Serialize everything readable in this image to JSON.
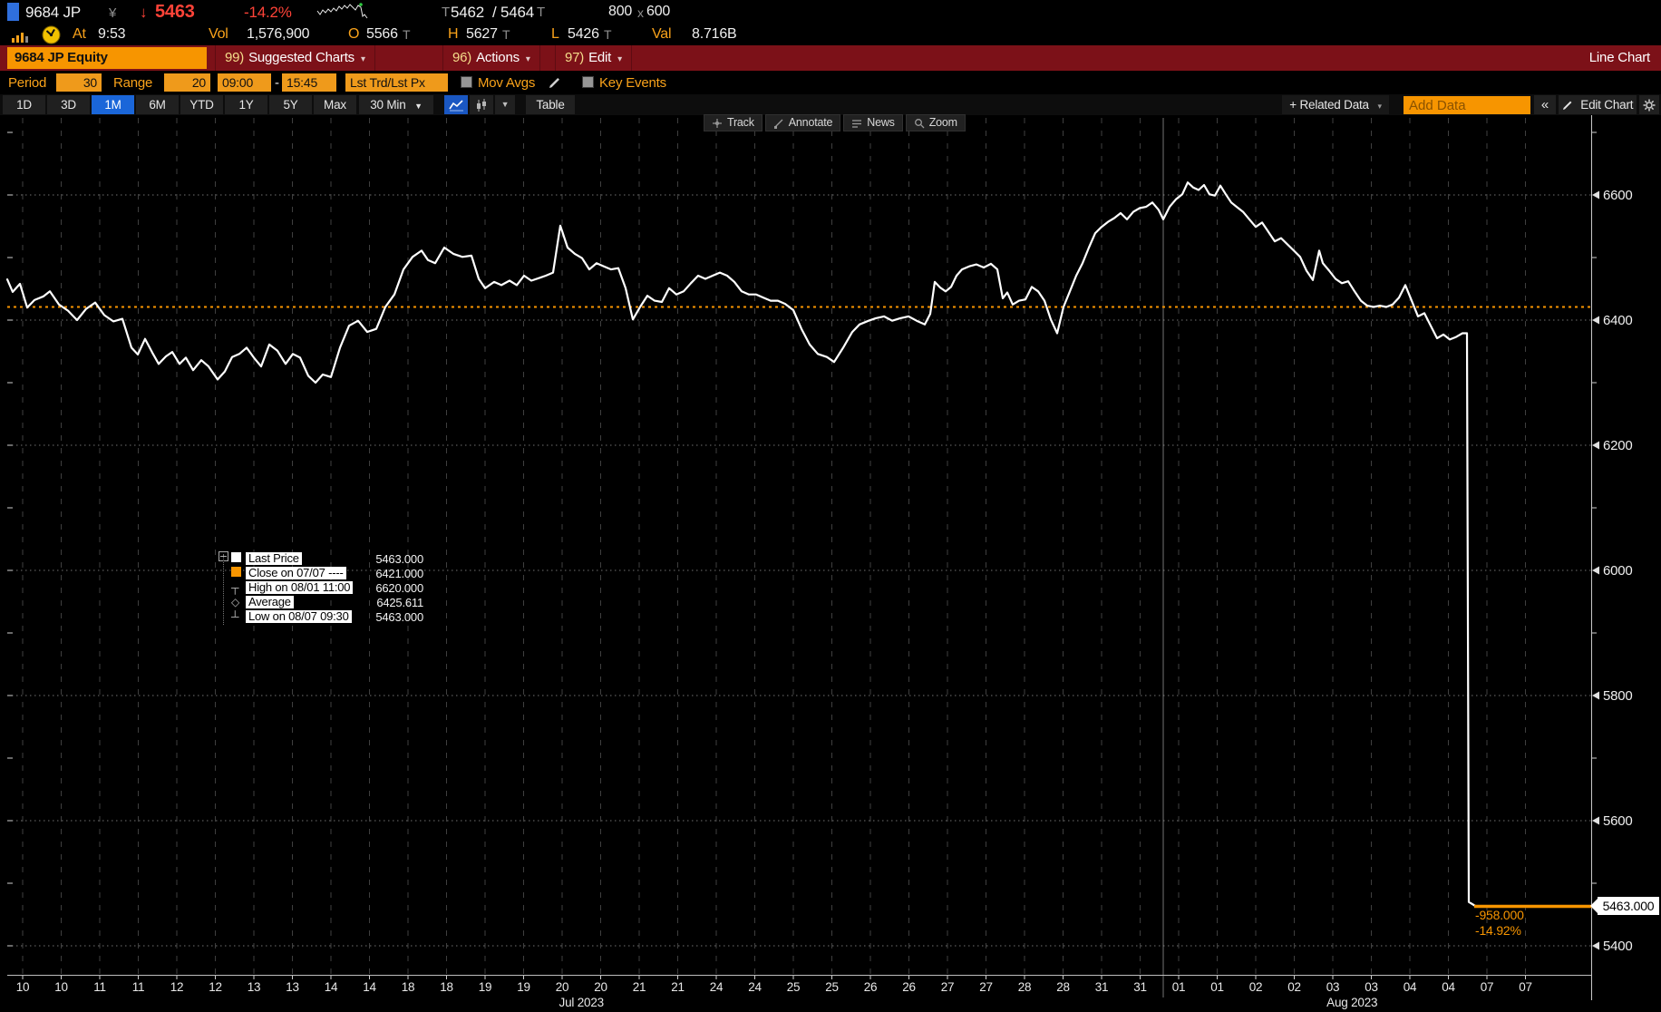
{
  "header": {
    "ticker": "9684 JP",
    "currency": "¥",
    "direction_arrow": "↓",
    "last_price": "5463",
    "change_pct": "-14.2%",
    "quote": {
      "pre": "T",
      "bid": "5462",
      "slash": "/",
      "ask": "5464",
      "post": "T"
    },
    "lot": {
      "bid_size": "800",
      "x": "x",
      "ask_size": "600"
    },
    "at_label": "At",
    "at_time": "9:53",
    "vol_label": "Vol",
    "volume": "1,576,900",
    "open_label": "O",
    "open": "5566",
    "open_sfx": "T",
    "high_label": "H",
    "high": "5627",
    "high_sfx": "T",
    "low_label": "L",
    "low": "5426",
    "low_sfx": "T",
    "val_label": "Val",
    "value_traded": "8.716B"
  },
  "titlebar": {
    "security": "9684 JP Equity",
    "menu_suggested_num": "99)",
    "menu_suggested": "Suggested Charts",
    "menu_actions_num": "96)",
    "menu_actions": "Actions",
    "menu_edit_num": "97)",
    "menu_edit": "Edit",
    "view_label": "Line Chart"
  },
  "settings": {
    "period_label": "Period",
    "period": "30",
    "range_label": "Range",
    "range": "20",
    "time_start": "09:00",
    "dash": "-",
    "time_end": "15:45",
    "price_field": "Lst Trd/Lst Px",
    "mov_avgs_label": "Mov Avgs",
    "key_events_label": "Key Events"
  },
  "toolbar": {
    "tabs": [
      "1D",
      "3D",
      "1M",
      "6M",
      "YTD",
      "1Y",
      "5Y",
      "Max"
    ],
    "selected_tab": "1M",
    "interval": "30 Min",
    "interval_caret": "▼",
    "chart_style_caret": "▼",
    "table_label": "Table",
    "related_data_label": "+ Related Data",
    "related_caret": "▾",
    "add_data_placeholder": "Add Data",
    "collapse_label": "«",
    "edit_chart_label": "Edit Chart"
  },
  "chart_toolbar": {
    "track": "Track",
    "annotate": "Annotate",
    "news": "News",
    "zoom": "Zoom"
  },
  "legend": {
    "rows": [
      {
        "label": "Last Price",
        "value": "5463.000"
      },
      {
        "label": "Close on 07/07 ----",
        "value": "6421.000"
      },
      {
        "label": "High on 08/01 11:00",
        "value": "6620.000"
      },
      {
        "label": "Average",
        "value": "6425.611"
      },
      {
        "label": "Low on 08/07 09:30",
        "value": "5463.000"
      }
    ]
  },
  "annotation": {
    "change": "-958.000",
    "pct": "-14.92%"
  },
  "axis": {
    "last_price_label": "5463.000"
  },
  "colors": {
    "amber": "#f79500",
    "red": "#ff4338",
    "selected_blue": "#1a66d9",
    "line": "#ffffff",
    "titlebar_red": "#7c1118",
    "green_dot": "#2ecc40"
  },
  "chart_data": {
    "type": "line",
    "security": "9684 JP Equity",
    "series_name": "Last Price",
    "interval": "30 Min",
    "y_ticks": [
      6600,
      6400,
      6200,
      6000,
      5800,
      5600,
      5400
    ],
    "y_minor_ticks": [
      6700,
      6500,
      6300,
      6100,
      5900,
      5700,
      5500
    ],
    "x_labels": [
      "10",
      "10",
      "11",
      "11",
      "12",
      "12",
      "13",
      "13",
      "14",
      "14",
      "18",
      "18",
      "19",
      "19",
      "20",
      "20",
      "21",
      "21",
      "24",
      "24",
      "25",
      "25",
      "26",
      "26",
      "27",
      "27",
      "28",
      "28",
      "31",
      "31",
      "01",
      "01",
      "02",
      "02",
      "03",
      "03",
      "04",
      "04",
      "07",
      "07"
    ],
    "month_labels": [
      {
        "text": "Jul 2023",
        "tick_index": 14.5
      },
      {
        "text": "Aug 2023",
        "tick_index": 34.5
      }
    ],
    "month_separator_tick": 29.6,
    "close_line_value": 6421,
    "last_price": 5463,
    "high": 6620,
    "low": 5463,
    "average": 6425.611,
    "points": [
      [
        8,
        6465
      ],
      [
        14,
        6445
      ],
      [
        22,
        6458
      ],
      [
        30,
        6420
      ],
      [
        38,
        6432
      ],
      [
        48,
        6438
      ],
      [
        55,
        6446
      ],
      [
        65,
        6425
      ],
      [
        75,
        6415
      ],
      [
        85,
        6400
      ],
      [
        95,
        6418
      ],
      [
        105,
        6428
      ],
      [
        115,
        6408
      ],
      [
        125,
        6398
      ],
      [
        135,
        6402
      ],
      [
        145,
        6356
      ],
      [
        152,
        6345
      ],
      [
        160,
        6370
      ],
      [
        168,
        6348
      ],
      [
        175,
        6330
      ],
      [
        183,
        6342
      ],
      [
        190,
        6349
      ],
      [
        198,
        6330
      ],
      [
        205,
        6340
      ],
      [
        213,
        6320
      ],
      [
        222,
        6336
      ],
      [
        230,
        6326
      ],
      [
        240,
        6305
      ],
      [
        248,
        6318
      ],
      [
        256,
        6341
      ],
      [
        264,
        6346
      ],
      [
        272,
        6356
      ],
      [
        280,
        6340
      ],
      [
        288,
        6326
      ],
      [
        297,
        6361
      ],
      [
        306,
        6351
      ],
      [
        315,
        6330
      ],
      [
        323,
        6346
      ],
      [
        331,
        6340
      ],
      [
        340,
        6311
      ],
      [
        348,
        6300
      ],
      [
        356,
        6313
      ],
      [
        365,
        6309
      ],
      [
        375,
        6356
      ],
      [
        385,
        6391
      ],
      [
        395,
        6399
      ],
      [
        405,
        6381
      ],
      [
        415,
        6386
      ],
      [
        425,
        6421
      ],
      [
        435,
        6441
      ],
      [
        445,
        6481
      ],
      [
        455,
        6501
      ],
      [
        465,
        6511
      ],
      [
        472,
        6496
      ],
      [
        480,
        6491
      ],
      [
        490,
        6516
      ],
      [
        500,
        6506
      ],
      [
        510,
        6501
      ],
      [
        520,
        6503
      ],
      [
        528,
        6466
      ],
      [
        535,
        6451
      ],
      [
        545,
        6461
      ],
      [
        553,
        6456
      ],
      [
        562,
        6463
      ],
      [
        570,
        6456
      ],
      [
        578,
        6471
      ],
      [
        586,
        6463
      ],
      [
        594,
        6467
      ],
      [
        602,
        6471
      ],
      [
        610,
        6476
      ],
      [
        618,
        6551
      ],
      [
        626,
        6516
      ],
      [
        634,
        6506
      ],
      [
        642,
        6499
      ],
      [
        650,
        6481
      ],
      [
        658,
        6491
      ],
      [
        666,
        6486
      ],
      [
        674,
        6481
      ],
      [
        682,
        6483
      ],
      [
        690,
        6451
      ],
      [
        698,
        6401
      ],
      [
        706,
        6421
      ],
      [
        714,
        6439
      ],
      [
        722,
        6431
      ],
      [
        730,
        6429
      ],
      [
        738,
        6451
      ],
      [
        746,
        6441
      ],
      [
        754,
        6446
      ],
      [
        762,
        6459
      ],
      [
        770,
        6471
      ],
      [
        778,
        6466
      ],
      [
        786,
        6471
      ],
      [
        794,
        6476
      ],
      [
        802,
        6471
      ],
      [
        810,
        6461
      ],
      [
        818,
        6446
      ],
      [
        826,
        6441
      ],
      [
        834,
        6441
      ],
      [
        842,
        6436
      ],
      [
        850,
        6431
      ],
      [
        858,
        6431
      ],
      [
        866,
        6426
      ],
      [
        875,
        6416
      ],
      [
        884,
        6386
      ],
      [
        893,
        6361
      ],
      [
        902,
        6346
      ],
      [
        912,
        6341
      ],
      [
        920,
        6333
      ],
      [
        930,
        6356
      ],
      [
        940,
        6381
      ],
      [
        948,
        6393
      ],
      [
        958,
        6399
      ],
      [
        966,
        6403
      ],
      [
        975,
        6406
      ],
      [
        984,
        6399
      ],
      [
        993,
        6403
      ],
      [
        1002,
        6406
      ],
      [
        1011,
        6399
      ],
      [
        1020,
        6393
      ],
      [
        1026,
        6410
      ],
      [
        1031,
        6461
      ],
      [
        1037,
        6452
      ],
      [
        1043,
        6446
      ],
      [
        1049,
        6453
      ],
      [
        1055,
        6471
      ],
      [
        1061,
        6481
      ],
      [
        1069,
        6486
      ],
      [
        1077,
        6489
      ],
      [
        1085,
        6484
      ],
      [
        1093,
        6490
      ],
      [
        1100,
        6481
      ],
      [
        1106,
        6435
      ],
      [
        1111,
        6444
      ],
      [
        1117,
        6425
      ],
      [
        1124,
        6431
      ],
      [
        1131,
        6433
      ],
      [
        1138,
        6453
      ],
      [
        1145,
        6446
      ],
      [
        1152,
        6431
      ],
      [
        1159,
        6401
      ],
      [
        1166,
        6379
      ],
      [
        1173,
        6421
      ],
      [
        1180,
        6446
      ],
      [
        1187,
        6471
      ],
      [
        1194,
        6491
      ],
      [
        1201,
        6516
      ],
      [
        1208,
        6539
      ],
      [
        1215,
        6549
      ],
      [
        1222,
        6557
      ],
      [
        1229,
        6563
      ],
      [
        1236,
        6571
      ],
      [
        1243,
        6561
      ],
      [
        1250,
        6573
      ],
      [
        1257,
        6579
      ],
      [
        1264,
        6581
      ],
      [
        1271,
        6588
      ],
      [
        1278,
        6576
      ],
      [
        1283,
        6561
      ],
      [
        1290,
        6581
      ],
      [
        1297,
        6593
      ],
      [
        1304,
        6601
      ],
      [
        1310,
        6620
      ],
      [
        1316,
        6612
      ],
      [
        1322,
        6608
      ],
      [
        1328,
        6616
      ],
      [
        1334,
        6601
      ],
      [
        1340,
        6599
      ],
      [
        1346,
        6615
      ],
      [
        1352,
        6601
      ],
      [
        1358,
        6588
      ],
      [
        1364,
        6581
      ],
      [
        1371,
        6573
      ],
      [
        1378,
        6561
      ],
      [
        1385,
        6549
      ],
      [
        1392,
        6556
      ],
      [
        1399,
        6541
      ],
      [
        1406,
        6526
      ],
      [
        1413,
        6531
      ],
      [
        1420,
        6521
      ],
      [
        1427,
        6511
      ],
      [
        1434,
        6501
      ],
      [
        1441,
        6479
      ],
      [
        1448,
        6464
      ],
      [
        1455,
        6511
      ],
      [
        1459,
        6491
      ],
      [
        1466,
        6479
      ],
      [
        1473,
        6466
      ],
      [
        1480,
        6459
      ],
      [
        1487,
        6462
      ],
      [
        1494,
        6446
      ],
      [
        1501,
        6431
      ],
      [
        1508,
        6423
      ],
      [
        1515,
        6421
      ],
      [
        1522,
        6423
      ],
      [
        1529,
        6421
      ],
      [
        1536,
        6425
      ],
      [
        1543,
        6436
      ],
      [
        1550,
        6456
      ],
      [
        1557,
        6431
      ],
      [
        1564,
        6406
      ],
      [
        1571,
        6411
      ],
      [
        1578,
        6391
      ],
      [
        1585,
        6371
      ],
      [
        1592,
        6377
      ],
      [
        1599,
        6369
      ],
      [
        1606,
        6373
      ],
      [
        1613,
        6379
      ],
      [
        1618,
        6379
      ],
      [
        1620,
        5470
      ],
      [
        1628,
        5463
      ],
      [
        1690,
        5463
      ],
      [
        1754,
        5463
      ]
    ]
  }
}
